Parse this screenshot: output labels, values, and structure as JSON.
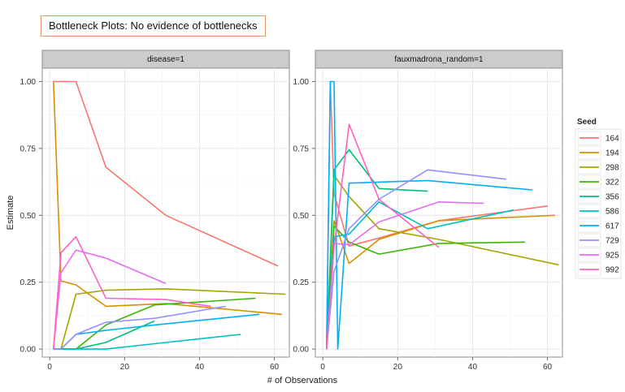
{
  "annotation": "Bottleneck Plots: No evidence of bottlenecks",
  "chart_data": {
    "type": "line",
    "xlabel": "# of Observations",
    "ylabel": "Estimate",
    "xlim": [
      -2,
      64
    ],
    "ylim": [
      -0.03,
      1.05
    ],
    "x_ticks": [
      0,
      20,
      40,
      60
    ],
    "y_ticks": [
      0,
      0.25,
      0.5,
      0.75,
      1.0
    ],
    "y_tick_labels": [
      "0.00",
      "0.25",
      "0.50",
      "0.75",
      "1.00"
    ],
    "grid": true,
    "legend": {
      "title": "Seed",
      "placement": "right",
      "entries": [
        "164",
        "194",
        "298",
        "322",
        "356",
        "586",
        "617",
        "729",
        "925",
        "992"
      ]
    },
    "colors": {
      "164": "#f8766d",
      "194": "#d89000",
      "298": "#a3a500",
      "322": "#39b600",
      "356": "#00bf7d",
      "586": "#00bfc4",
      "617": "#00b0f6",
      "729": "#9590ff",
      "925": "#e76bf3",
      "992": "#ff62bc"
    },
    "panels": [
      {
        "label": "disease=1",
        "series": [
          {
            "name": "164",
            "points": [
              [
                1,
                1.0
              ],
              [
                7,
                1.0
              ],
              [
                15,
                0.68
              ],
              [
                31,
                0.5
              ],
              [
                61,
                0.31
              ]
            ]
          },
          {
            "name": "194",
            "points": [
              [
                1,
                1.0
              ],
              [
                3,
                0.255
              ],
              [
                7,
                0.24
              ],
              [
                15,
                0.16
              ],
              [
                31,
                0.17
              ],
              [
                62,
                0.13
              ]
            ]
          },
          {
            "name": "298",
            "points": [
              [
                1,
                0.0
              ],
              [
                3,
                0.0
              ],
              [
                7,
                0.205
              ],
              [
                15,
                0.22
              ],
              [
                31,
                0.225
              ],
              [
                63,
                0.205
              ]
            ]
          },
          {
            "name": "322",
            "points": [
              [
                1,
                0.0
              ],
              [
                3,
                0.0
              ],
              [
                7,
                0.0
              ],
              [
                15,
                0.09
              ],
              [
                28,
                0.165
              ],
              [
                55,
                0.19
              ]
            ]
          },
          {
            "name": "356",
            "points": [
              [
                1,
                0.0
              ],
              [
                3,
                0.0
              ],
              [
                7,
                0.0
              ],
              [
                15,
                0.025
              ],
              [
                28,
                0.105
              ]
            ]
          },
          {
            "name": "586",
            "points": [
              [
                1,
                0.0
              ],
              [
                3,
                0.0
              ],
              [
                7,
                0.0
              ],
              [
                15,
                0.0
              ],
              [
                28,
                0.02
              ],
              [
                51,
                0.055
              ]
            ]
          },
          {
            "name": "617",
            "points": [
              [
                1,
                0.0
              ],
              [
                3,
                0.0
              ],
              [
                7,
                0.055
              ],
              [
                15,
                0.07
              ],
              [
                28,
                0.09
              ],
              [
                56,
                0.13
              ]
            ]
          },
          {
            "name": "729",
            "points": [
              [
                1,
                0.0
              ],
              [
                3,
                0.0
              ],
              [
                7,
                0.055
              ],
              [
                15,
                0.1
              ],
              [
                28,
                0.115
              ],
              [
                47,
                0.16
              ]
            ]
          },
          {
            "name": "925",
            "points": [
              [
                1,
                0.0
              ],
              [
                3,
                0.285
              ],
              [
                7,
                0.37
              ],
              [
                15,
                0.34
              ],
              [
                31,
                0.245
              ]
            ]
          },
          {
            "name": "992",
            "points": [
              [
                1,
                0.0
              ],
              [
                3,
                0.36
              ],
              [
                7,
                0.42
              ],
              [
                15,
                0.19
              ],
              [
                31,
                0.185
              ],
              [
                43,
                0.16
              ]
            ]
          }
        ]
      },
      {
        "label": "fauxmadrona_random=1",
        "series": [
          {
            "name": "164",
            "points": [
              [
                1,
                0.0
              ],
              [
                2,
                1.0
              ],
              [
                3,
                0.58
              ],
              [
                7,
                0.385
              ],
              [
                15,
                0.415
              ],
              [
                31,
                0.48
              ],
              [
                60,
                0.535
              ]
            ]
          },
          {
            "name": "194",
            "points": [
              [
                1,
                0.0
              ],
              [
                3,
                0.48
              ],
              [
                7,
                0.32
              ],
              [
                15,
                0.41
              ],
              [
                31,
                0.48
              ],
              [
                62,
                0.5
              ]
            ]
          },
          {
            "name": "298",
            "points": [
              [
                1,
                0.0
              ],
              [
                3,
                0.65
              ],
              [
                7,
                0.57
              ],
              [
                15,
                0.45
              ],
              [
                31,
                0.41
              ],
              [
                63,
                0.315
              ]
            ]
          },
          {
            "name": "322",
            "points": [
              [
                1,
                0.0
              ],
              [
                3,
                0.46
              ],
              [
                7,
                0.4
              ],
              [
                15,
                0.355
              ],
              [
                31,
                0.395
              ],
              [
                54,
                0.4
              ]
            ]
          },
          {
            "name": "356",
            "points": [
              [
                1,
                0.0
              ],
              [
                3,
                0.67
              ],
              [
                7,
                0.745
              ],
              [
                15,
                0.6
              ],
              [
                28,
                0.59
              ]
            ]
          },
          {
            "name": "586",
            "points": [
              [
                1,
                0.0
              ],
              [
                3,
                0.42
              ],
              [
                7,
                0.43
              ],
              [
                15,
                0.55
              ],
              [
                28,
                0.45
              ],
              [
                51,
                0.52
              ]
            ]
          },
          {
            "name": "617",
            "points": [
              [
                1,
                0.0
              ],
              [
                2,
                1.0
              ],
              [
                3,
                1.0
              ],
              [
                4,
                0.0
              ],
              [
                7,
                0.62
              ],
              [
                28,
                0.63
              ],
              [
                56,
                0.595
              ]
            ]
          },
          {
            "name": "729",
            "points": [
              [
                1,
                0.0
              ],
              [
                3,
                0.29
              ],
              [
                7,
                0.45
              ],
              [
                15,
                0.56
              ],
              [
                28,
                0.67
              ],
              [
                49,
                0.635
              ]
            ]
          },
          {
            "name": "925",
            "points": [
              [
                1,
                0.0
              ],
              [
                3,
                0.395
              ],
              [
                7,
                0.39
              ],
              [
                15,
                0.475
              ],
              [
                31,
                0.55
              ],
              [
                43,
                0.545
              ]
            ]
          },
          {
            "name": "992",
            "points": [
              [
                1,
                0.0
              ],
              [
                3,
                0.38
              ],
              [
                7,
                0.84
              ],
              [
                15,
                0.56
              ],
              [
                31,
                0.38
              ]
            ]
          }
        ]
      }
    ]
  }
}
